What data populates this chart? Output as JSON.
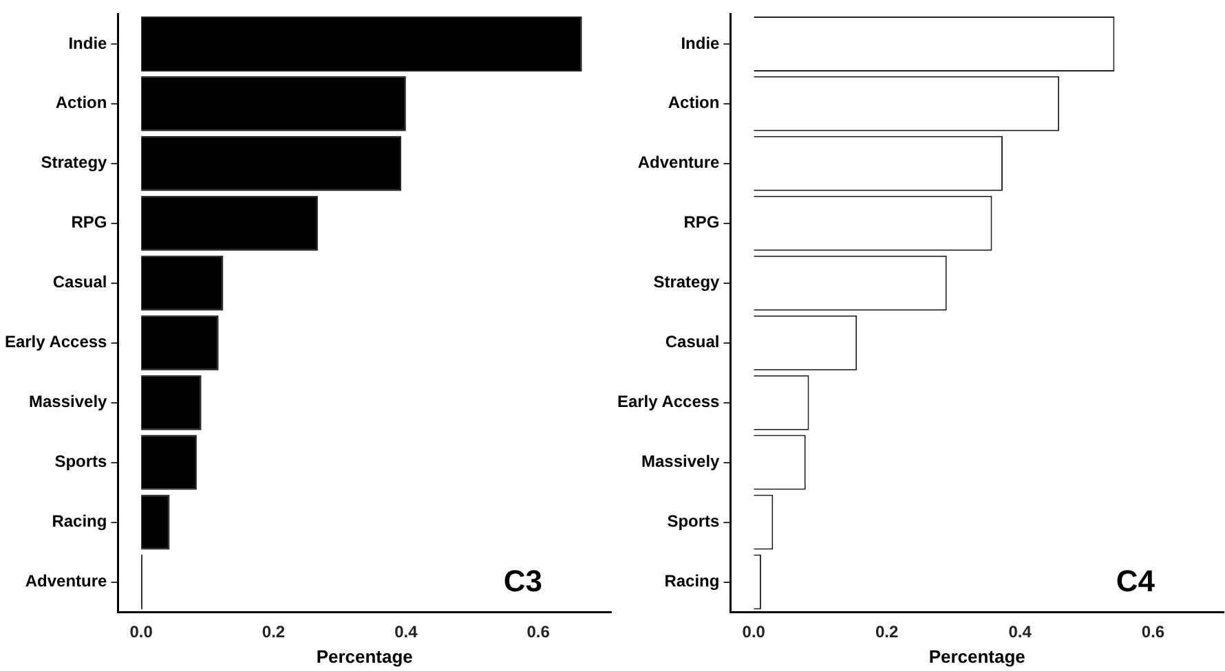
{
  "chart_data": [
    {
      "type": "bar",
      "orientation": "horizontal",
      "categories": [
        "Indie",
        "Action",
        "Strategy",
        "RPG",
        "Casual",
        "Early Access",
        "Massively",
        "Sports",
        "Racing",
        "Adventure"
      ],
      "values": [
        0.666,
        0.4,
        0.393,
        0.267,
        0.124,
        0.117,
        0.091,
        0.084,
        0.043,
        0.002
      ],
      "color": "#000000",
      "xlabel": "Percentage",
      "xlim": [
        -0.035,
        0.71
      ],
      "xticks": [
        {
          "value": 0,
          "label": "0.0"
        },
        0.2,
        0.4,
        0.6
      ],
      "grid": false,
      "legend": false,
      "annotations": [
        "C3"
      ]
    },
    {
      "type": "bar",
      "orientation": "horizontal",
      "categories": [
        "Indie",
        "Action",
        "Adventure",
        "RPG",
        "Strategy",
        "Casual",
        "Early Access",
        "Massively",
        "Sports",
        "Racing"
      ],
      "values": [
        0.542,
        0.459,
        0.374,
        0.358,
        0.29,
        0.155,
        0.083,
        0.078,
        0.029,
        0.011
      ],
      "color": "#ffffff",
      "xlabel": "Percentage",
      "xlim": [
        -0.035,
        0.706
      ],
      "xticks": [
        {
          "value": 0,
          "label": "0.0"
        },
        0.2,
        0.4,
        0.6
      ],
      "grid": false,
      "legend": false,
      "annotations": [
        "C4"
      ]
    }
  ]
}
